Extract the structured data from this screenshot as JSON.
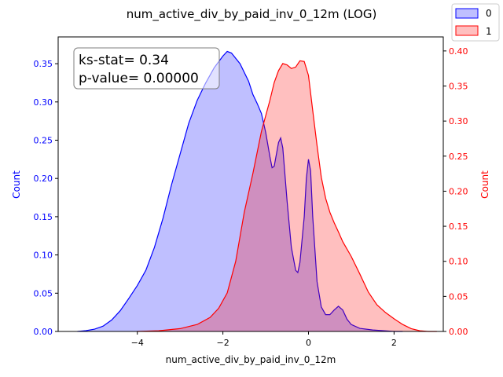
{
  "chart_data": {
    "type": "area",
    "title": "num_active_div_by_paid_inv_0_12m (LOG)",
    "xlabel": "num_active_div_by_paid_inv_0_12m",
    "ylabel_left": "Count",
    "ylabel_right": "Count",
    "xlim": [
      -5.85,
      3.15
    ],
    "ylim_left": [
      0,
      0.385
    ],
    "ylim_right": [
      0,
      0.42
    ],
    "x_ticks": [
      -4,
      -2,
      0,
      2
    ],
    "y_ticks_left": [
      0.0,
      0.05,
      0.1,
      0.15,
      0.2,
      0.25,
      0.3,
      0.35
    ],
    "y_ticks_right": [
      0.0,
      0.05,
      0.1,
      0.15,
      0.2,
      0.25,
      0.3,
      0.35,
      0.4
    ],
    "grid": false,
    "legend": {
      "placement": "top-right",
      "entries": [
        "0",
        "1"
      ]
    },
    "annotation": {
      "line1": "ks-stat= 0.34",
      "line2": "p-value= 0.00000"
    },
    "colors": {
      "series0_line": "#0000ff",
      "series0_fill": "rgba(0,0,255,0.25)",
      "series1_line": "#ff0000",
      "series1_fill": "rgba(255,0,0,0.25)",
      "left_axis": "#0000ff",
      "right_axis": "#ff0000"
    },
    "series": [
      {
        "name": "0",
        "axis": "left",
        "points": [
          [
            -5.4,
            0.0
          ],
          [
            -5.2,
            0.001
          ],
          [
            -5.0,
            0.003
          ],
          [
            -4.8,
            0.007
          ],
          [
            -4.6,
            0.015
          ],
          [
            -4.4,
            0.027
          ],
          [
            -4.2,
            0.043
          ],
          [
            -4.0,
            0.06
          ],
          [
            -3.8,
            0.08
          ],
          [
            -3.6,
            0.11
          ],
          [
            -3.4,
            0.148
          ],
          [
            -3.2,
            0.192
          ],
          [
            -3.0,
            0.232
          ],
          [
            -2.8,
            0.272
          ],
          [
            -2.6,
            0.302
          ],
          [
            -2.4,
            0.325
          ],
          [
            -2.2,
            0.345
          ],
          [
            -2.0,
            0.36
          ],
          [
            -1.9,
            0.366
          ],
          [
            -1.8,
            0.364
          ],
          [
            -1.6,
            0.35
          ],
          [
            -1.4,
            0.327
          ],
          [
            -1.3,
            0.31
          ],
          [
            -1.2,
            0.298
          ],
          [
            -1.1,
            0.285
          ],
          [
            -1.0,
            0.26
          ],
          [
            -0.9,
            0.228
          ],
          [
            -0.85,
            0.214
          ],
          [
            -0.8,
            0.216
          ],
          [
            -0.7,
            0.247
          ],
          [
            -0.65,
            0.253
          ],
          [
            -0.6,
            0.24
          ],
          [
            -0.5,
            0.17
          ],
          [
            -0.4,
            0.11
          ],
          [
            -0.3,
            0.08
          ],
          [
            -0.25,
            0.077
          ],
          [
            -0.2,
            0.09
          ],
          [
            -0.1,
            0.15
          ],
          [
            -0.05,
            0.2
          ],
          [
            0.0,
            0.225
          ],
          [
            0.05,
            0.21
          ],
          [
            0.1,
            0.15
          ],
          [
            0.2,
            0.065
          ],
          [
            0.3,
            0.032
          ],
          [
            0.4,
            0.022
          ],
          [
            0.5,
            0.022
          ],
          [
            0.6,
            0.028
          ],
          [
            0.7,
            0.033
          ],
          [
            0.8,
            0.028
          ],
          [
            0.9,
            0.016
          ],
          [
            1.0,
            0.009
          ],
          [
            1.2,
            0.004
          ],
          [
            1.5,
            0.002
          ],
          [
            2.0,
            0.0
          ],
          [
            2.2,
            0.0
          ]
        ]
      },
      {
        "name": "1",
        "axis": "right",
        "points": [
          [
            -4.0,
            0.0
          ],
          [
            -3.5,
            0.001
          ],
          [
            -3.0,
            0.004
          ],
          [
            -2.6,
            0.01
          ],
          [
            -2.3,
            0.02
          ],
          [
            -2.1,
            0.033
          ],
          [
            -1.9,
            0.055
          ],
          [
            -1.7,
            0.1
          ],
          [
            -1.5,
            0.17
          ],
          [
            -1.3,
            0.225
          ],
          [
            -1.1,
            0.285
          ],
          [
            -0.9,
            0.33
          ],
          [
            -0.8,
            0.355
          ],
          [
            -0.7,
            0.372
          ],
          [
            -0.6,
            0.382
          ],
          [
            -0.5,
            0.38
          ],
          [
            -0.4,
            0.375
          ],
          [
            -0.3,
            0.377
          ],
          [
            -0.2,
            0.386
          ],
          [
            -0.1,
            0.385
          ],
          [
            0.0,
            0.365
          ],
          [
            0.1,
            0.315
          ],
          [
            0.2,
            0.265
          ],
          [
            0.3,
            0.22
          ],
          [
            0.4,
            0.19
          ],
          [
            0.5,
            0.17
          ],
          [
            0.6,
            0.155
          ],
          [
            0.7,
            0.142
          ],
          [
            0.8,
            0.128
          ],
          [
            1.0,
            0.107
          ],
          [
            1.2,
            0.082
          ],
          [
            1.4,
            0.056
          ],
          [
            1.6,
            0.038
          ],
          [
            1.8,
            0.027
          ],
          [
            2.0,
            0.018
          ],
          [
            2.2,
            0.01
          ],
          [
            2.4,
            0.004
          ],
          [
            2.6,
            0.001
          ],
          [
            2.8,
            0.0
          ],
          [
            3.0,
            0.0
          ]
        ]
      }
    ]
  }
}
